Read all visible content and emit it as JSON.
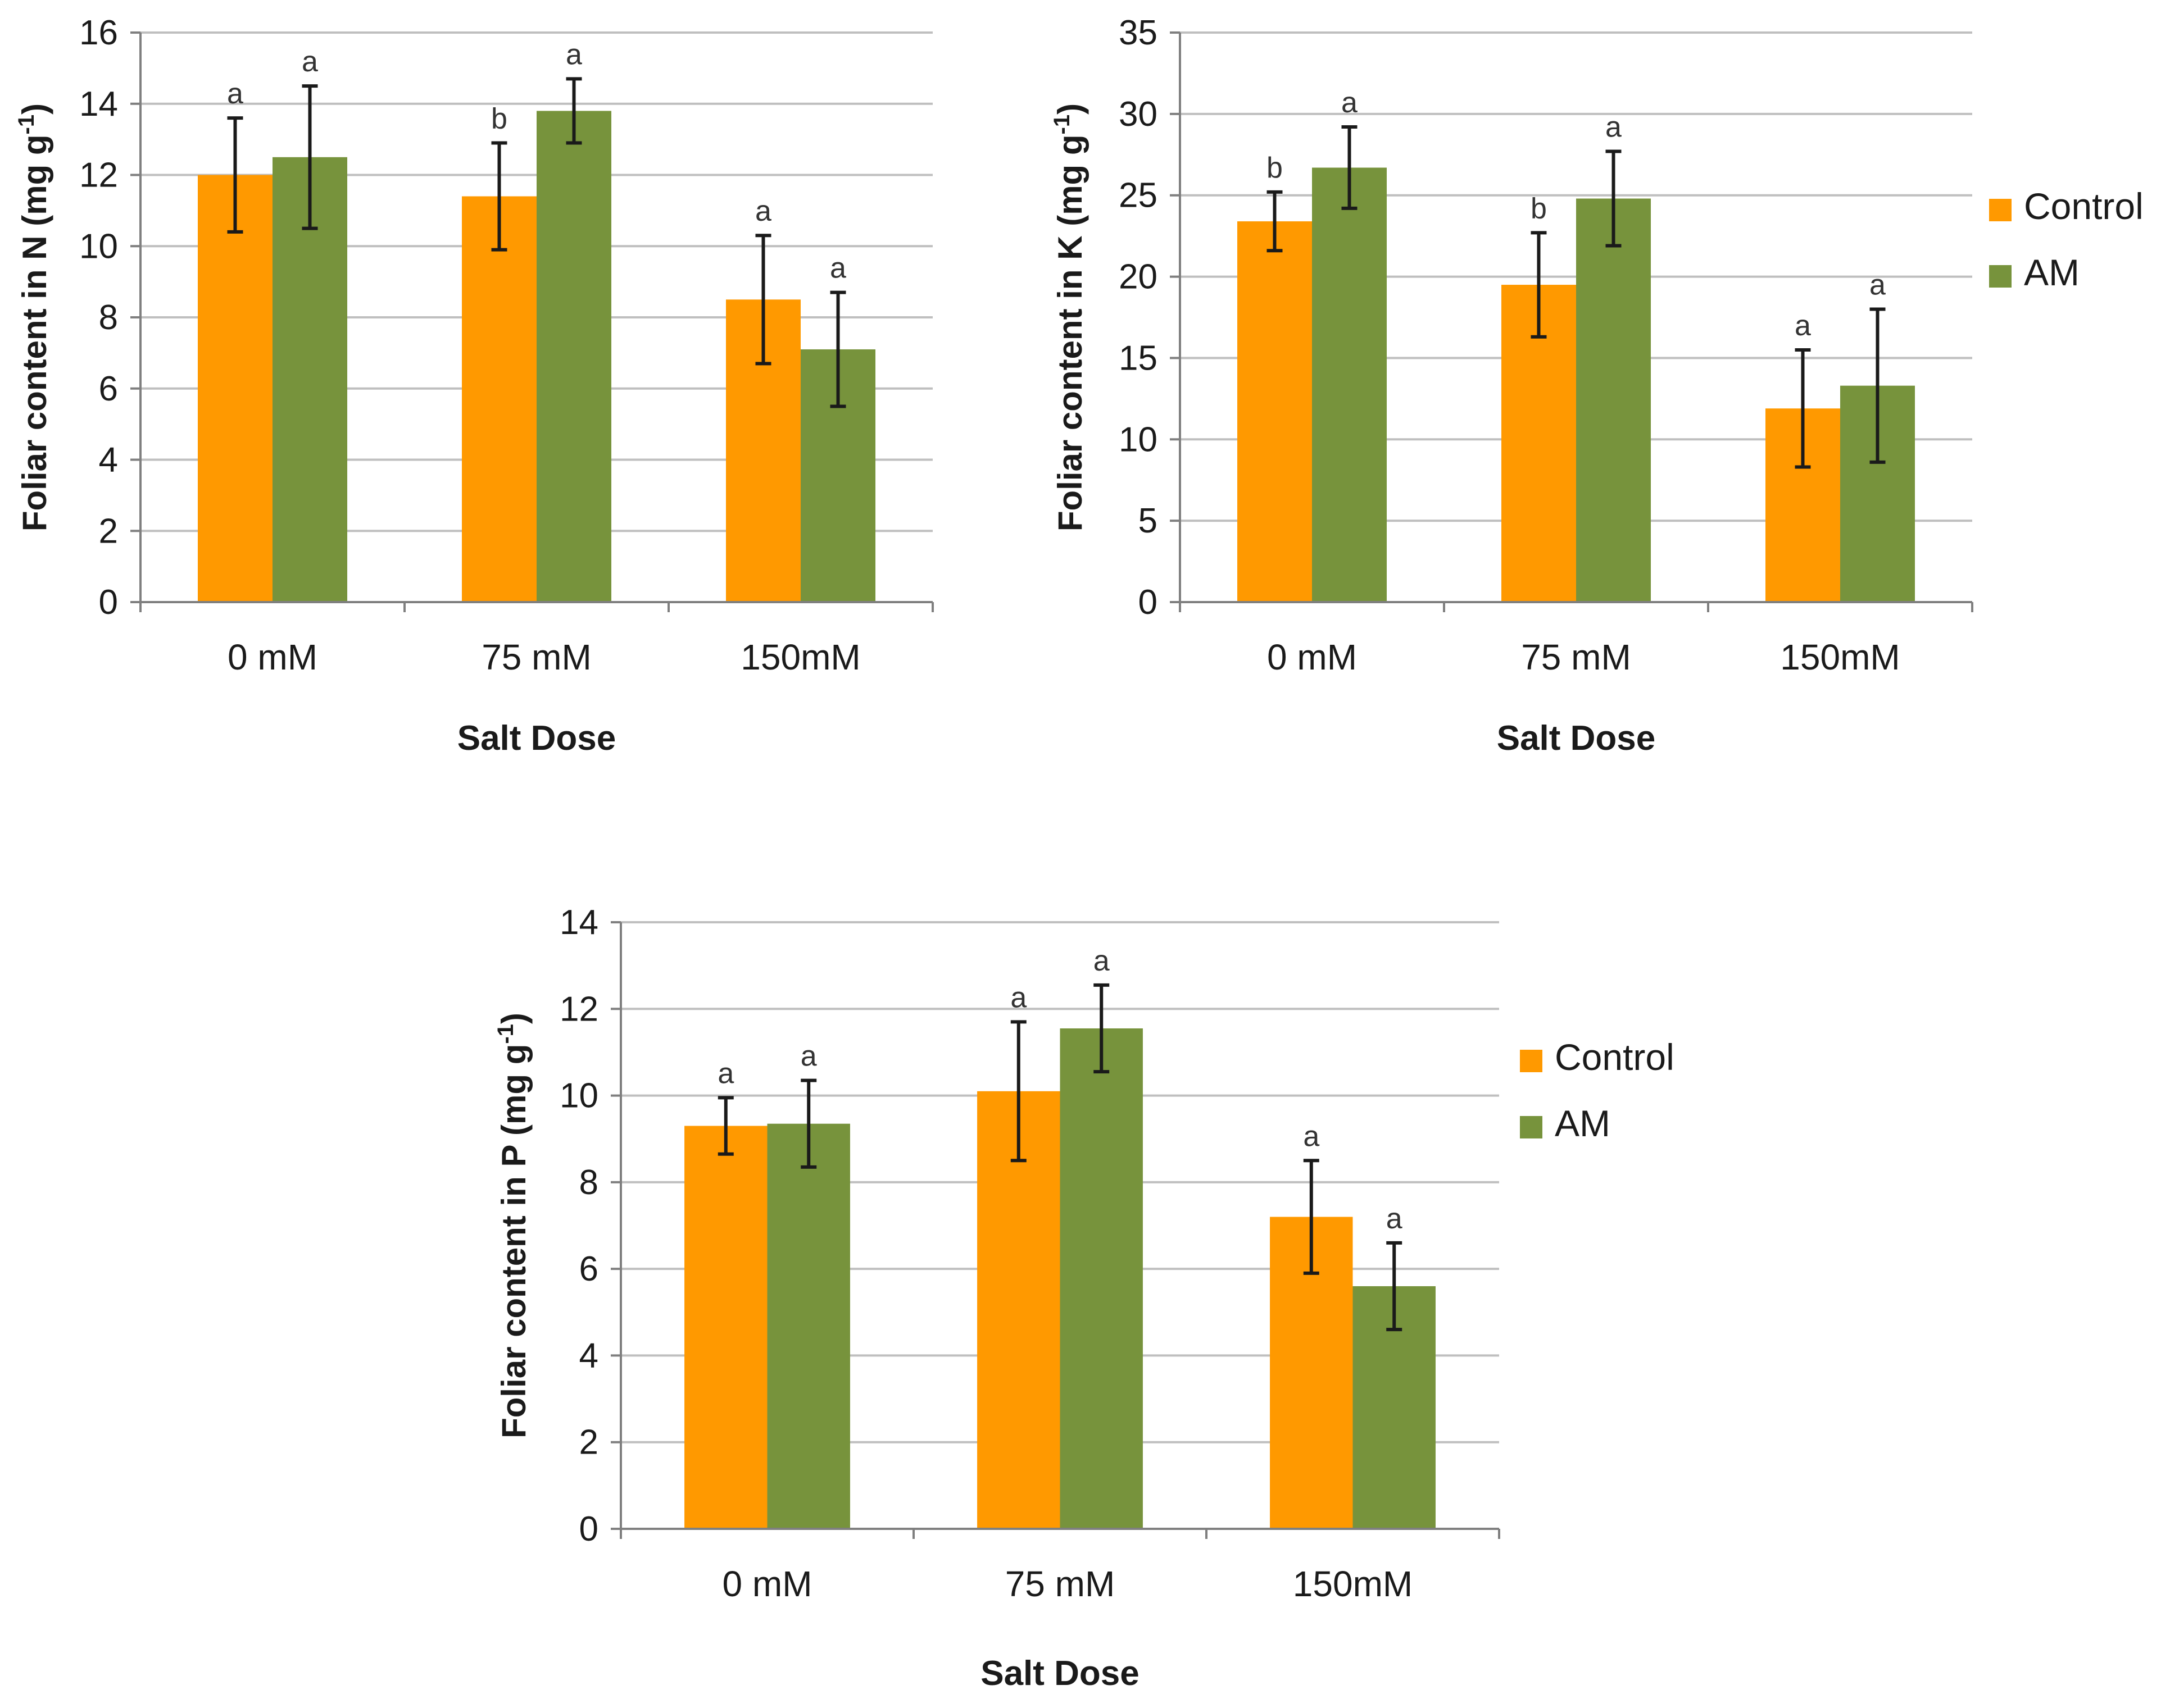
{
  "colors": {
    "control": "#ff9900",
    "am": "#77933c",
    "grid": "#bfbfbf",
    "axis": "#7f7f7f",
    "error": "#1a1a1a"
  },
  "legend": {
    "control": "Control",
    "am": "AM"
  },
  "chart_data": [
    {
      "type": "bar",
      "panel": "N",
      "categories": [
        "0 mM",
        "75 mM",
        "150mM"
      ],
      "xlabel": "Salt Dose",
      "ylabel": "Foliar content in N  (mg g",
      "ylabel_sup": "-1",
      "ylim": [
        0,
        16
      ],
      "ytick_step": 2,
      "yticks": [
        "0",
        "2",
        "4",
        "6",
        "8",
        "10",
        "12",
        "14",
        "16"
      ],
      "grid": true,
      "legend": "none",
      "series": [
        {
          "name": "Control",
          "values": [
            12.0,
            11.4,
            8.5
          ],
          "errors": [
            1.6,
            1.5,
            1.8
          ],
          "letters": [
            "a",
            "b",
            "a"
          ]
        },
        {
          "name": "AM",
          "values": [
            12.5,
            13.8,
            7.1
          ],
          "errors": [
            2.0,
            0.9,
            1.6
          ],
          "letters": [
            "a",
            "a",
            "a"
          ]
        }
      ]
    },
    {
      "type": "bar",
      "panel": "K",
      "categories": [
        "0 mM",
        "75 mM",
        "150mM"
      ],
      "xlabel": "Salt Dose",
      "ylabel": "Foliar content in K  (mg g",
      "ylabel_sup": "-1",
      "ylim": [
        0,
        35
      ],
      "ytick_step": 5,
      "yticks": [
        "0",
        "5",
        "10",
        "15",
        "20",
        "25",
        "30",
        "35"
      ],
      "grid": true,
      "legend": "right",
      "series": [
        {
          "name": "Control",
          "values": [
            23.4,
            19.5,
            11.9
          ],
          "errors": [
            1.8,
            3.2,
            3.6
          ],
          "letters": [
            "b",
            "b",
            "a"
          ]
        },
        {
          "name": "AM",
          "values": [
            26.7,
            24.8,
            13.3
          ],
          "errors": [
            2.5,
            2.9,
            4.7
          ],
          "letters": [
            "a",
            "a",
            "a"
          ]
        }
      ]
    },
    {
      "type": "bar",
      "panel": "P",
      "categories": [
        "0 mM",
        "75 mM",
        "150mM"
      ],
      "xlabel": "Salt Dose",
      "ylabel": "Foliar content in P (mg g",
      "ylabel_sup": "-1",
      "ylim": [
        0,
        14
      ],
      "ytick_step": 2,
      "yticks": [
        "0",
        "2",
        "4",
        "6",
        "8",
        "10",
        "12",
        "14"
      ],
      "grid": true,
      "legend": "right",
      "series": [
        {
          "name": "Control",
          "values": [
            9.3,
            10.1,
            7.2
          ],
          "errors": [
            0.65,
            1.6,
            1.3
          ],
          "letters": [
            "a",
            "a",
            "a"
          ]
        },
        {
          "name": "AM",
          "values": [
            9.35,
            11.55,
            5.6
          ],
          "errors": [
            1.0,
            1.0,
            1.0
          ],
          "letters": [
            "a",
            "a",
            "a"
          ]
        }
      ]
    }
  ]
}
